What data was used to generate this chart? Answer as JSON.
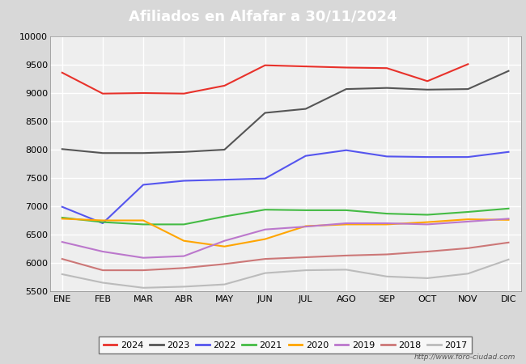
{
  "title": "Afiliados en Alfafar a 30/11/2024",
  "title_bg_color": "#4f86c6",
  "title_text_color": "#ffffff",
  "ylim": [
    5500,
    10000
  ],
  "months": [
    "ENE",
    "FEB",
    "MAR",
    "ABR",
    "MAY",
    "JUN",
    "JUL",
    "AGO",
    "SEP",
    "OCT",
    "NOV",
    "DIC"
  ],
  "watermark": "http://www.foro-ciudad.com",
  "series": {
    "2024": {
      "color": "#e8312a",
      "data": [
        9360,
        8990,
        9000,
        8990,
        9130,
        9490,
        9470,
        9450,
        9440,
        9210,
        9510,
        null
      ]
    },
    "2023": {
      "color": "#555555",
      "data": [
        8010,
        7940,
        7940,
        7960,
        8000,
        8650,
        8720,
        9070,
        9090,
        9060,
        9070,
        9390
      ]
    },
    "2022": {
      "color": "#5555ee",
      "data": [
        6990,
        6700,
        7380,
        7450,
        7470,
        7490,
        7890,
        7990,
        7880,
        7870,
        7870,
        7960
      ]
    },
    "2021": {
      "color": "#44bb44",
      "data": [
        6800,
        6720,
        6680,
        6680,
        6820,
        6940,
        6930,
        6930,
        6870,
        6850,
        6900,
        6960
      ]
    },
    "2020": {
      "color": "#ffa500",
      "data": [
        6780,
        6750,
        6750,
        6390,
        6290,
        6420,
        6650,
        6680,
        6680,
        6720,
        6770,
        6760
      ]
    },
    "2019": {
      "color": "#bb77cc",
      "data": [
        6370,
        6200,
        6090,
        6120,
        6390,
        6590,
        6640,
        6700,
        6700,
        6680,
        6730,
        6780
      ]
    },
    "2018": {
      "color": "#cc7777",
      "data": [
        6070,
        5870,
        5870,
        5910,
        5980,
        6070,
        6100,
        6130,
        6150,
        6200,
        6260,
        6360
      ]
    },
    "2017": {
      "color": "#bbbbbb",
      "data": [
        5800,
        5650,
        5560,
        5580,
        5620,
        5820,
        5870,
        5880,
        5760,
        5730,
        5810,
        6060
      ]
    }
  },
  "outer_bg_color": "#d8d8d8",
  "plot_bg_color": "#eeeeee",
  "grid_color": "#ffffff",
  "yticks": [
    5500,
    6000,
    6500,
    7000,
    7500,
    8000,
    8500,
    9000,
    9500,
    10000
  ]
}
